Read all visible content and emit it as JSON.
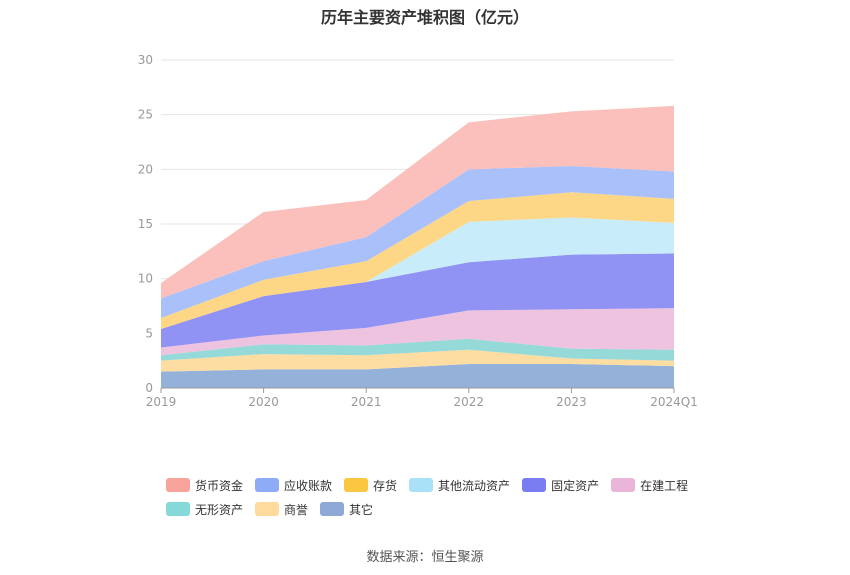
{
  "chart_data": {
    "type": "area",
    "title": "历年主要资产堆积图（亿元）",
    "source": "数据来源：恒生聚源",
    "x": [
      "2019",
      "2020",
      "2021",
      "2022",
      "2023",
      "2024Q1"
    ],
    "ylim": [
      0,
      30
    ],
    "yticks": [
      0,
      5,
      10,
      15,
      20,
      25,
      30
    ],
    "grid": true,
    "stacked": true,
    "legend_position": "bottom",
    "series": [
      {
        "name": "其它",
        "color": "#8eadd8",
        "values": [
          1.5,
          1.7,
          1.7,
          2.2,
          2.2,
          2.0
        ]
      },
      {
        "name": "商誉",
        "color": "#fddb9c",
        "values": [
          1.0,
          1.4,
          1.3,
          1.3,
          0.5,
          0.5
        ]
      },
      {
        "name": "无形资产",
        "color": "#8fd7d7",
        "values": [
          0.5,
          0.9,
          0.9,
          1.0,
          0.9,
          1.0
        ]
      },
      {
        "name": "在建工程",
        "color": "#edc0dd",
        "values": [
          0.7,
          0.8,
          1.6,
          2.6,
          3.6,
          3.8
        ]
      },
      {
        "name": "固定资产",
        "color": "#8a8cf3",
        "values": [
          1.7,
          3.6,
          4.2,
          4.4,
          5.0,
          5.0
        ]
      },
      {
        "name": "其他流动资产",
        "color": "#c6ebfb",
        "values": [
          0.0,
          0.0,
          0.0,
          3.7,
          3.4,
          2.8
        ]
      },
      {
        "name": "存货",
        "color": "#fdd57e",
        "values": [
          1.0,
          1.5,
          1.9,
          1.9,
          2.3,
          2.2
        ]
      },
      {
        "name": "应收账款",
        "color": "#a5bdfb",
        "values": [
          1.8,
          1.7,
          2.2,
          2.9,
          2.4,
          2.5
        ]
      },
      {
        "name": "货币资金",
        "color": "#fbbdb8",
        "values": [
          1.4,
          4.5,
          3.4,
          4.3,
          5.0,
          6.0
        ]
      }
    ],
    "legend_rows": [
      [
        {
          "label": "货币资金",
          "color": "#f9a49b"
        },
        {
          "label": "应收账款",
          "color": "#8eabf7"
        },
        {
          "label": "存货",
          "color": "#fcc740"
        },
        {
          "label": "其他流动资产",
          "color": "#a9e1f9"
        },
        {
          "label": "固定资产",
          "color": "#7a7cf2"
        },
        {
          "label": "在建工程",
          "color": "#e9b5d8"
        }
      ],
      [
        {
          "label": "无形资产",
          "color": "#86d9d9"
        },
        {
          "label": "商誉",
          "color": "#fedb9c"
        },
        {
          "label": "其它",
          "color": "#8ea9d6"
        }
      ]
    ]
  }
}
